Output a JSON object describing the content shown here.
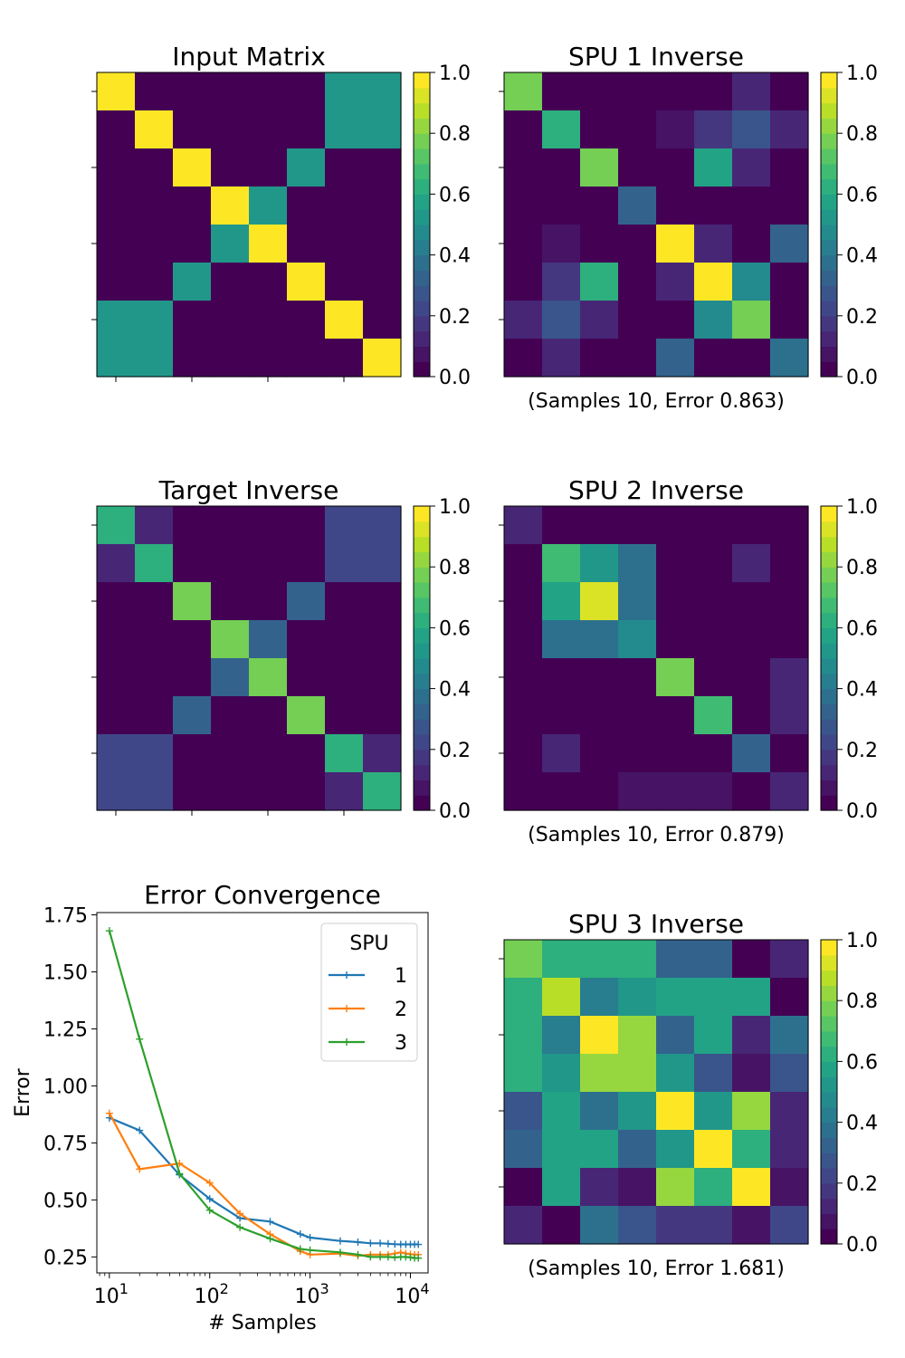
{
  "colormap": {
    "name": "viridis",
    "discrete_levels": 20,
    "stops": [
      "#440154",
      "#482475",
      "#414487",
      "#355f8d",
      "#2a788e",
      "#21918c",
      "#22a884",
      "#44bf70",
      "#7ad151",
      "#bddf26",
      "#fde725"
    ]
  },
  "chart_data": [
    {
      "type": "heatmap",
      "title": "Input Matrix",
      "subtitle": "",
      "clim": [
        0,
        1
      ],
      "colorbar_ticks": [
        "0.0",
        "0.2",
        "0.4",
        "0.6",
        "0.8",
        "1.0"
      ],
      "values": [
        [
          1,
          0,
          0,
          0,
          0,
          0,
          0.5,
          0.5
        ],
        [
          0,
          1,
          0,
          0,
          0,
          0,
          0.5,
          0.5
        ],
        [
          0,
          0,
          1,
          0,
          0,
          0.5,
          0,
          0
        ],
        [
          0,
          0,
          0,
          1,
          0.5,
          0,
          0,
          0
        ],
        [
          0,
          0,
          0,
          0.5,
          1,
          0,
          0,
          0
        ],
        [
          0,
          0,
          0.5,
          0,
          0,
          1,
          0,
          0
        ],
        [
          0.5,
          0.5,
          0,
          0,
          0,
          0,
          1,
          0
        ],
        [
          0.5,
          0.5,
          0,
          0,
          0,
          0,
          0,
          1
        ]
      ]
    },
    {
      "type": "heatmap",
      "title": "SPU 1 Inverse",
      "subtitle": "(Samples 10, Error 0.863)",
      "clim": [
        0,
        1
      ],
      "colorbar_ticks": [
        "0.0",
        "0.2",
        "0.4",
        "0.6",
        "0.8",
        "1.0"
      ],
      "values": [
        [
          0.75,
          0,
          0,
          0,
          0,
          0,
          0.1,
          0
        ],
        [
          0,
          0.6,
          0,
          0,
          0.05,
          0.15,
          0.25,
          0.1
        ],
        [
          0,
          0,
          0.75,
          0,
          0,
          0.55,
          0.1,
          0
        ],
        [
          0,
          0,
          0,
          0.3,
          0,
          0,
          0,
          0
        ],
        [
          0,
          0.05,
          0,
          0,
          0.95,
          0.1,
          0,
          0.3
        ],
        [
          0,
          0.15,
          0.6,
          0,
          0.1,
          1.0,
          0.45,
          0
        ],
        [
          0.1,
          0.25,
          0.1,
          0,
          0,
          0.45,
          0.75,
          0
        ],
        [
          0,
          0.1,
          0,
          0,
          0.3,
          0,
          0,
          0.35
        ]
      ]
    },
    {
      "type": "heatmap",
      "title": "Target Inverse",
      "subtitle": "",
      "clim": [
        0,
        1
      ],
      "colorbar_ticks": [
        "0.0",
        "0.2",
        "0.4",
        "0.6",
        "0.8",
        "1.0"
      ],
      "values": [
        [
          0.6,
          0.1,
          0,
          0,
          0,
          0,
          0.2,
          0.2
        ],
        [
          0.1,
          0.6,
          0,
          0,
          0,
          0,
          0.2,
          0.2
        ],
        [
          0,
          0,
          0.75,
          0,
          0,
          0.3,
          0,
          0
        ],
        [
          0,
          0,
          0,
          0.75,
          0.3,
          0,
          0,
          0
        ],
        [
          0,
          0,
          0,
          0.3,
          0.75,
          0,
          0,
          0
        ],
        [
          0,
          0,
          0.3,
          0,
          0,
          0.75,
          0,
          0
        ],
        [
          0.2,
          0.2,
          0,
          0,
          0,
          0,
          0.6,
          0.1
        ],
        [
          0.2,
          0.2,
          0,
          0,
          0,
          0,
          0.1,
          0.6
        ]
      ]
    },
    {
      "type": "heatmap",
      "title": "SPU 2 Inverse",
      "subtitle": "(Samples 10, Error 0.879)",
      "clim": [
        0,
        1
      ],
      "colorbar_ticks": [
        "0.0",
        "0.2",
        "0.4",
        "0.6",
        "0.8",
        "1.0"
      ],
      "values": [
        [
          0.1,
          0,
          0,
          0,
          0,
          0,
          0,
          0
        ],
        [
          0,
          0.65,
          0.5,
          0.35,
          0,
          0,
          0.1,
          0
        ],
        [
          0,
          0.55,
          0.9,
          0.35,
          0,
          0,
          0,
          0
        ],
        [
          0,
          0.35,
          0.35,
          0.45,
          0,
          0,
          0,
          0
        ],
        [
          0,
          0,
          0,
          0,
          0.75,
          0,
          0,
          0.1
        ],
        [
          0,
          0,
          0,
          0,
          0,
          0.65,
          0,
          0.1
        ],
        [
          0,
          0.1,
          0,
          0,
          0,
          0,
          0.3,
          0
        ],
        [
          0,
          0,
          0,
          0.05,
          0.05,
          0.05,
          0,
          0.1
        ]
      ]
    },
    {
      "type": "line",
      "title": "Error Convergence",
      "xlabel": "# Samples",
      "ylabel": "Error",
      "xscale": "log",
      "xlim": [
        7.5,
        15000
      ],
      "ylim": [
        0.18,
        1.76
      ],
      "yticks": [
        "0.25",
        "0.50",
        "0.75",
        "1.00",
        "1.25",
        "1.50",
        "1.75"
      ],
      "xticks": [
        {
          "base": "10",
          "exp": "1"
        },
        {
          "base": "10",
          "exp": "2"
        },
        {
          "base": "10",
          "exp": "3"
        },
        {
          "base": "10",
          "exp": "4"
        }
      ],
      "legend": {
        "title": "SPU",
        "placement": "top-right"
      },
      "x": [
        10,
        20,
        50,
        100,
        200,
        400,
        800,
        1000,
        2000,
        3000,
        4000,
        5000,
        6000,
        7000,
        8000,
        9000,
        10000,
        11000,
        12000
      ],
      "series": [
        {
          "name": "1",
          "color": "#1f77b4",
          "values": [
            0.86,
            0.805,
            0.61,
            0.505,
            0.42,
            0.405,
            0.35,
            0.335,
            0.32,
            0.315,
            0.31,
            0.31,
            0.308,
            0.306,
            0.305,
            0.305,
            0.305,
            0.305,
            0.305
          ]
        },
        {
          "name": "2",
          "color": "#ff7f0e",
          "values": [
            0.88,
            0.635,
            0.66,
            0.575,
            0.44,
            0.35,
            0.275,
            0.26,
            0.265,
            0.255,
            0.26,
            0.26,
            0.26,
            0.265,
            0.27,
            0.265,
            0.262,
            0.26,
            0.26
          ]
        },
        {
          "name": "3",
          "color": "#2ca02c",
          "values": [
            1.68,
            1.205,
            0.615,
            0.455,
            0.38,
            0.33,
            0.285,
            0.28,
            0.27,
            0.26,
            0.25,
            0.25,
            0.25,
            0.248,
            0.25,
            0.25,
            0.248,
            0.245,
            0.245
          ]
        }
      ]
    },
    {
      "type": "heatmap",
      "title": "SPU 3 Inverse",
      "subtitle": "(Samples 10, Error 1.681)",
      "clim": [
        0,
        1
      ],
      "colorbar_ticks": [
        "0.0",
        "0.2",
        "0.4",
        "0.6",
        "0.8",
        "1.0"
      ],
      "values": [
        [
          0.75,
          0.6,
          0.6,
          0.6,
          0.3,
          0.3,
          0,
          0.1
        ],
        [
          0.6,
          0.85,
          0.4,
          0.5,
          0.55,
          0.55,
          0.55,
          0
        ],
        [
          0.6,
          0.4,
          1.0,
          0.8,
          0.3,
          0.55,
          0.1,
          0.35
        ],
        [
          0.6,
          0.5,
          0.8,
          0.8,
          0.5,
          0.25,
          0.05,
          0.25
        ],
        [
          0.25,
          0.55,
          0.35,
          0.5,
          1.0,
          0.5,
          0.8,
          0.1
        ],
        [
          0.3,
          0.55,
          0.55,
          0.3,
          0.5,
          1.0,
          0.6,
          0.1
        ],
        [
          0,
          0.55,
          0.1,
          0.05,
          0.8,
          0.6,
          1.0,
          0.05
        ],
        [
          0.1,
          0,
          0.35,
          0.25,
          0.15,
          0.15,
          0.05,
          0.2
        ]
      ]
    }
  ]
}
